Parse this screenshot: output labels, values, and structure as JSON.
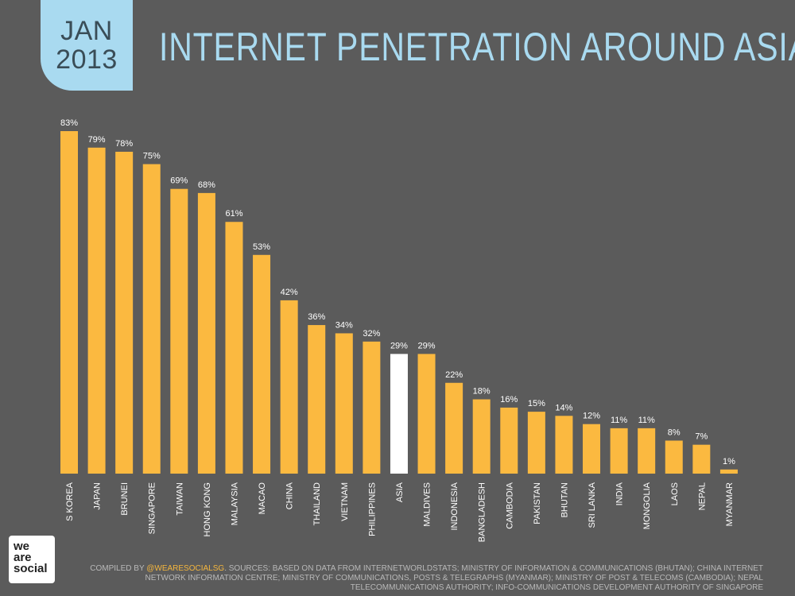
{
  "badge": {
    "month": "JAN",
    "year": "2013"
  },
  "title": "INTERNET PENETRATION AROUND ASIA",
  "colors": {
    "background": "#5b5b5b",
    "bar": "#fbb940",
    "highlight_bar": "#ffffff",
    "badge": "#a9daf0",
    "title": "#a9daf0",
    "label": "#ffffff"
  },
  "logo": {
    "lines": [
      "we",
      "are",
      "social"
    ]
  },
  "source": {
    "prefix": "COMPILED BY ",
    "handle": "@WEARESOCIALSG",
    "text": ". SOURCES: BASED ON DATA FROM INTERNETWORLDSTATS; MINISTRY OF INFORMATION & COMMUNICATIONS (BHUTAN); CHINA INTERNET NETWORK INFORMATION CENTRE; MINISTRY OF COMMUNICATIONS, POSTS & TELEGRAPHS (MYANMAR); MINISTRY OF POST & TELECOMS (CAMBODIA); NEPAL TELECOMMUNICATIONS AUTHORITY; INFO-COMMUNICATIONS DEVELOPMENT AUTHORITY OF SINGAPORE"
  },
  "chart_data": {
    "type": "bar",
    "categories": [
      "S KOREA",
      "JAPAN",
      "BRUNEI",
      "SINGAPORE",
      "TAIWAN",
      "HONG KONG",
      "MALAYSIA",
      "MACAO",
      "CHINA",
      "THAILAND",
      "VIETNAM",
      "PHILIPPINES",
      "ASIA",
      "MALDIVES",
      "INDONESIA",
      "BANGLADESH",
      "CAMBODIA",
      "PAKISTAN",
      "BHUTAN",
      "SRI LANKA",
      "INDIA",
      "MONGOLIA",
      "LAOS",
      "NEPAL",
      "MYANMAR"
    ],
    "values": [
      83,
      79,
      78,
      75,
      69,
      68,
      61,
      53,
      42,
      36,
      34,
      32,
      29,
      29,
      22,
      18,
      16,
      15,
      14,
      12,
      11,
      11,
      8,
      7,
      1
    ],
    "value_labels": [
      "83%",
      "79%",
      "78%",
      "75%",
      "69%",
      "68%",
      "61%",
      "53%",
      "42%",
      "36%",
      "34%",
      "32%",
      "29%",
      "29%",
      "22%",
      "18%",
      "16%",
      "15%",
      "14%",
      "12%",
      "11%",
      "11%",
      "8%",
      "7%",
      "1%"
    ],
    "highlight": "ASIA",
    "ylim": [
      0,
      83
    ],
    "title": "",
    "xlabel": "",
    "ylabel": "",
    "grid": false
  }
}
